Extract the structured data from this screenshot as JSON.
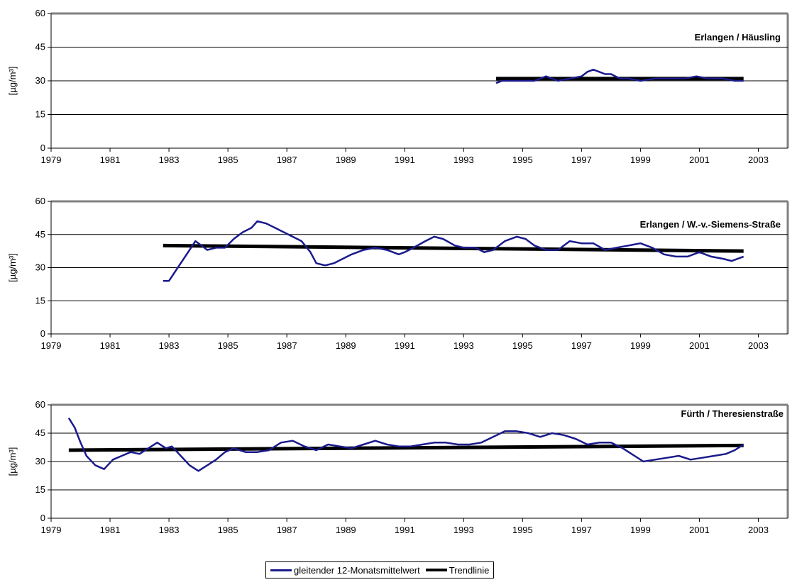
{
  "colors": {
    "series": "#1a1a8c",
    "trend": "#000000",
    "frame": "#808080",
    "grid": "#000000"
  },
  "legend": {
    "placement": "bottom-center",
    "items": [
      {
        "label": "gleitender 12-Monatsmittelwert",
        "color": "#1a1a8c"
      },
      {
        "label": "Trendlinie",
        "color": "#000000"
      }
    ]
  },
  "chart_data": [
    {
      "type": "line",
      "title": "Erlangen / Häusling",
      "ylabel": "[µg/m³]",
      "xlim": [
        1979,
        2004
      ],
      "ylim": [
        0,
        60
      ],
      "xticks": [
        1979,
        1981,
        1983,
        1985,
        1987,
        1989,
        1991,
        1993,
        1995,
        1997,
        1999,
        2001,
        2003
      ],
      "yticks": [
        0,
        15,
        30,
        45,
        60
      ],
      "grid": true,
      "series": [
        {
          "x": [
            1994.1,
            1994.3,
            1994.6,
            1995.0,
            1995.4,
            1995.8,
            1996.2,
            1996.6,
            1997.0,
            1997.2,
            1997.4,
            1997.6,
            1997.8,
            1998.0,
            1998.3,
            1998.6,
            1999.0,
            1999.5,
            2000.0,
            2000.5,
            2000.9,
            2001.3,
            2001.8,
            2002.2,
            2002.5
          ],
          "y": [
            29,
            30,
            30,
            30,
            30,
            32,
            30,
            31,
            32,
            34,
            35,
            34,
            33,
            33,
            31,
            31,
            30,
            31,
            31,
            31,
            32,
            31,
            31,
            30,
            30
          ]
        }
      ],
      "trend": {
        "x": [
          1994.1,
          2002.5
        ],
        "y": [
          31,
          31
        ]
      }
    },
    {
      "type": "line",
      "title": "Erlangen / W.-v.-Siemens-Straße",
      "ylabel": "[µg/m³]",
      "xlim": [
        1979,
        2004
      ],
      "ylim": [
        0,
        60
      ],
      "xticks": [
        1979,
        1981,
        1983,
        1985,
        1987,
        1989,
        1991,
        1993,
        1995,
        1997,
        1999,
        2001,
        2003
      ],
      "yticks": [
        0,
        15,
        30,
        45,
        60
      ],
      "grid": true,
      "series": [
        {
          "x": [
            1982.8,
            1983.0,
            1983.3,
            1983.6,
            1983.9,
            1984.1,
            1984.3,
            1984.6,
            1984.9,
            1985.2,
            1985.5,
            1985.8,
            1986.0,
            1986.3,
            1986.6,
            1986.9,
            1987.2,
            1987.5,
            1987.8,
            1988.0,
            1988.3,
            1988.6,
            1988.9,
            1989.2,
            1989.6,
            1990.0,
            1990.4,
            1990.8,
            1991.0,
            1991.3,
            1991.7,
            1992.0,
            1992.3,
            1992.7,
            1993.0,
            1993.4,
            1993.7,
            1994.0,
            1994.4,
            1994.8,
            1995.1,
            1995.4,
            1995.8,
            1996.2,
            1996.6,
            1997.0,
            1997.4,
            1997.8,
            1998.2,
            1998.6,
            1999.0,
            1999.4,
            1999.8,
            2000.2,
            2000.6,
            2001.0,
            2001.4,
            2001.8,
            2002.1,
            2002.5
          ],
          "y": [
            24,
            24,
            30,
            36,
            42,
            40,
            38,
            39,
            39,
            43,
            46,
            48,
            51,
            50,
            48,
            46,
            44,
            42,
            37,
            32,
            31,
            32,
            34,
            36,
            38,
            39,
            38,
            36,
            37,
            39,
            42,
            44,
            43,
            40,
            39,
            39,
            37,
            38,
            42,
            44,
            43,
            40,
            38,
            38,
            42,
            41,
            41,
            38,
            39,
            40,
            41,
            39,
            36,
            35,
            35,
            37,
            35,
            34,
            33,
            35
          ]
        }
      ],
      "trend": {
        "x": [
          1982.8,
          2002.5
        ],
        "y": [
          40,
          37.5
        ]
      }
    },
    {
      "type": "line",
      "title": "Fürth / Theresienstraße",
      "ylabel": "[µg/m³]",
      "xlim": [
        1979,
        2004
      ],
      "ylim": [
        0,
        60
      ],
      "xticks": [
        1979,
        1981,
        1983,
        1985,
        1987,
        1989,
        1991,
        1993,
        1995,
        1997,
        1999,
        2001,
        2003
      ],
      "yticks": [
        0,
        15,
        30,
        45,
        60
      ],
      "grid": true,
      "series": [
        {
          "x": [
            1979.6,
            1979.8,
            1980.0,
            1980.2,
            1980.5,
            1980.8,
            1981.1,
            1981.4,
            1981.7,
            1982.0,
            1982.3,
            1982.6,
            1982.9,
            1983.1,
            1983.4,
            1983.7,
            1984.0,
            1984.3,
            1984.6,
            1984.9,
            1985.2,
            1985.6,
            1986.0,
            1986.4,
            1986.8,
            1987.2,
            1987.6,
            1988.0,
            1988.4,
            1988.8,
            1989.2,
            1989.6,
            1990.0,
            1990.4,
            1990.8,
            1991.2,
            1991.6,
            1992.0,
            1992.4,
            1992.8,
            1993.2,
            1993.6,
            1994.0,
            1994.4,
            1994.8,
            1995.2,
            1995.6,
            1996.0,
            1996.4,
            1996.8,
            1997.2,
            1997.6,
            1998.0,
            1998.4,
            1998.8,
            1999.1,
            1999.5,
            1999.9,
            2000.3,
            2000.7,
            2001.1,
            2001.5,
            2001.9,
            2002.2,
            2002.5
          ],
          "y": [
            53,
            48,
            40,
            33,
            28,
            26,
            31,
            33,
            35,
            34,
            37,
            40,
            37,
            38,
            33,
            28,
            25,
            28,
            31,
            35,
            37,
            35,
            35,
            36,
            40,
            41,
            38,
            36,
            39,
            38,
            37,
            39,
            41,
            39,
            38,
            38,
            39,
            40,
            40,
            39,
            39,
            40,
            43,
            46,
            46,
            45,
            43,
            45,
            44,
            42,
            39,
            40,
            40,
            37,
            33,
            30,
            31,
            32,
            33,
            31,
            32,
            33,
            34,
            36,
            39
          ]
        }
      ],
      "trend": {
        "x": [
          1979.6,
          2002.5
        ],
        "y": [
          36,
          38.5
        ]
      }
    }
  ]
}
